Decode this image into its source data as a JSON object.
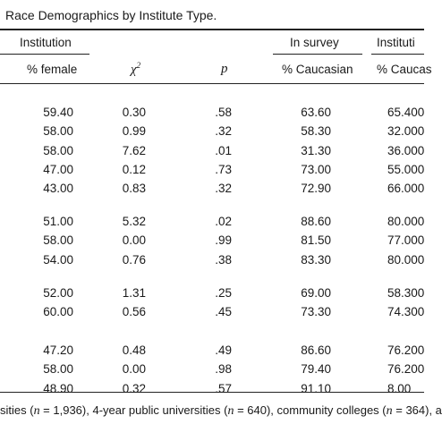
{
  "caption": "Race Demographics by Institute Type.",
  "header": {
    "group_institution": "Institution",
    "group_in_survey": "In survey",
    "group_institution_right": "Instituti",
    "col_female": "% female",
    "col_chi_base": "χ",
    "col_chi_sup": "2",
    "col_p": "p",
    "col_caucasian": "% Caucasian",
    "col_caucasian_right": "% Caucas"
  },
  "groups": [
    {
      "rows": [
        {
          "female": "59.40",
          "chi": "0.30",
          "p": ".58",
          "caucasian": "63.60",
          "inst": "65.400"
        },
        {
          "female": "58.00",
          "chi": "0.99",
          "p": ".32",
          "caucasian": "58.30",
          "inst": "32.000"
        },
        {
          "female": "58.00",
          "chi": "7.62",
          "p": ".01",
          "caucasian": "31.30",
          "inst": "36.000"
        },
        {
          "female": "47.00",
          "chi": "0.12",
          "p": ".73",
          "caucasian": "73.00",
          "inst": "55.000"
        },
        {
          "female": "43.00",
          "chi": "0.83",
          "p": ".32",
          "caucasian": "72.90",
          "inst": "66.000"
        }
      ]
    },
    {
      "rows": [
        {
          "female": "51.00",
          "chi": "5.32",
          "p": ".02",
          "caucasian": "88.60",
          "inst": "80.000"
        },
        {
          "female": "58.00",
          "chi": "0.00",
          "p": ".99",
          "caucasian": "81.50",
          "inst": "77.000"
        },
        {
          "female": "54.00",
          "chi": "0.76",
          "p": ".38",
          "caucasian": "83.30",
          "inst": "80.000"
        }
      ]
    },
    {
      "rows": [
        {
          "female": "52.00",
          "chi": "1.31",
          "p": ".25",
          "caucasian": "69.00",
          "inst": "58.300"
        },
        {
          "female": "60.00",
          "chi": "0.56",
          "p": ".45",
          "caucasian": "73.30",
          "inst": "74.300"
        }
      ]
    },
    {
      "rows": [
        {
          "female": "47.20",
          "chi": "0.48",
          "p": ".49",
          "caucasian": "86.60",
          "inst": "76.200"
        },
        {
          "female": "58.00",
          "chi": "0.00",
          "p": ".98",
          "caucasian": "79.40",
          "inst": "76.200"
        },
        {
          "female": "48.90",
          "chi": "0.32",
          "p": ".57",
          "caucasian": "91.10",
          "inst": "8.00"
        }
      ]
    }
  ],
  "note": {
    "p1": "sities (",
    "n1": "n",
    "p2": " = 1,936), 4-year public universities (",
    "n2": "n",
    "p3": " = 640), community colleges (",
    "n3": "n",
    "p4": " = 364), a"
  }
}
